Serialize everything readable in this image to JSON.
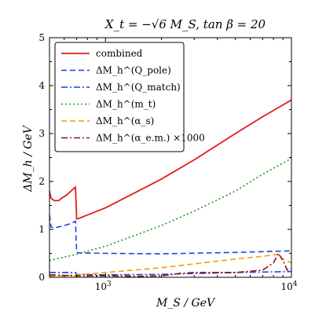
{
  "chart_data": {
    "type": "line",
    "title": "X_t = −√6 M_S, tan β = 20",
    "xlabel": "M_S / GeV",
    "ylabel": "ΔM_h / GeV",
    "xscale": "log",
    "xlim": [
      500,
      10000
    ],
    "ylim": [
      0,
      5
    ],
    "x_ticks": [
      1000,
      10000
    ],
    "x_tick_labels": [
      "10^3",
      "10^4"
    ],
    "y_ticks": [
      0,
      1,
      2,
      3,
      4,
      5
    ],
    "y_tick_labels": [
      "0",
      "1",
      "2",
      "3",
      "4",
      "5"
    ],
    "grid": false,
    "legend_position": "top-left",
    "series": [
      {
        "name": "combined",
        "color": "#e41a1c",
        "style": "solid",
        "x": [
          500,
          510,
          530,
          560,
          580,
          620,
          660,
          690,
          700,
          720,
          800,
          1000,
          1500,
          2000,
          3000,
          5000,
          7000,
          10000
        ],
        "y": [
          1.8,
          1.65,
          1.6,
          1.6,
          1.65,
          1.72,
          1.82,
          1.88,
          1.22,
          1.23,
          1.3,
          1.45,
          1.8,
          2.05,
          2.45,
          3.0,
          3.35,
          3.7
        ]
      },
      {
        "name": "ΔM_h^(Q_pole)",
        "color": "#1f3fe0",
        "style": "dashed",
        "x": [
          500,
          510,
          530,
          560,
          600,
          650,
          690,
          700,
          720,
          1000,
          2000,
          5000,
          10000
        ],
        "y": [
          1.3,
          1.05,
          1.03,
          1.05,
          1.08,
          1.12,
          1.17,
          0.52,
          0.51,
          0.5,
          0.49,
          0.52,
          0.55
        ]
      },
      {
        "name": "ΔM_h^(Q_match)",
        "color": "#1f3fe0",
        "style": "dashdot",
        "x": [
          500,
          600,
          690,
          700,
          1000,
          2000,
          3000,
          5000,
          7000,
          10000
        ],
        "y": [
          0.1,
          0.1,
          0.1,
          0.06,
          0.05,
          0.06,
          0.08,
          0.1,
          0.11,
          0.12
        ]
      },
      {
        "name": "ΔM_h^(m_t)",
        "color": "#1a9a1a",
        "style": "dotted",
        "x": [
          500,
          700,
          1000,
          1500,
          2000,
          3000,
          5000,
          7000,
          10000
        ],
        "y": [
          0.35,
          0.48,
          0.65,
          0.9,
          1.08,
          1.38,
          1.8,
          2.15,
          2.48
        ]
      },
      {
        "name": "ΔM_h^(α_s)",
        "color": "#f0a000",
        "style": "dashed",
        "x": [
          500,
          700,
          1000,
          2000,
          3000,
          5000,
          7000,
          8500,
          9000,
          10000
        ],
        "y": [
          0.02,
          0.05,
          0.1,
          0.2,
          0.28,
          0.38,
          0.44,
          0.48,
          0.38,
          0.3
        ]
      },
      {
        "name": "ΔM_h^(α_e.m.) ×1000",
        "color": "#8b1010",
        "style": "dashdot",
        "x": [
          500,
          700,
          1000,
          1500,
          2000,
          2500,
          3000,
          5000,
          7000,
          8000,
          8500,
          9000,
          9500,
          10000
        ],
        "y": [
          0.05,
          0.03,
          0.03,
          0.02,
          0.03,
          0.08,
          0.1,
          0.1,
          0.15,
          0.3,
          0.5,
          0.35,
          0.15,
          0.18
        ]
      }
    ]
  }
}
